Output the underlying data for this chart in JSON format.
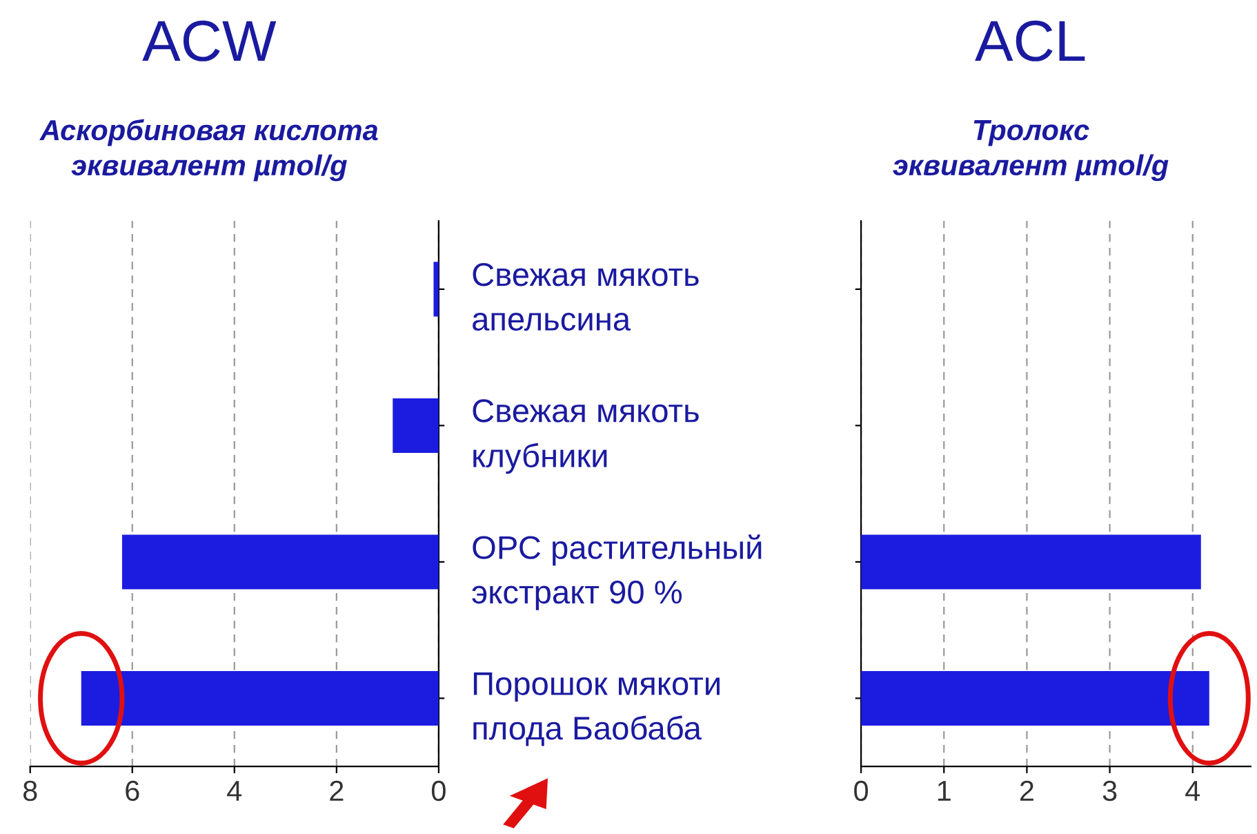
{
  "chart_data": [
    {
      "type": "bar",
      "orientation": "horizontal",
      "title": "ACW",
      "subtitle": "Аскорбиновая кислота\nэквивалент µmol/g",
      "categories": [
        "Свежая мякоть\nапельсина",
        "Свежая мякоть\nклубники",
        "ОРС растительный\nэкстракт 90 %",
        "Порошок мякоти\nплода Баобаба"
      ],
      "values": [
        0.1,
        0.9,
        6.2,
        7.0
      ],
      "color": "#1c1ce0",
      "xlim": [
        8,
        0
      ],
      "xticks": [
        8,
        6,
        4,
        2,
        0
      ],
      "grid": "x"
    },
    {
      "type": "bar",
      "orientation": "horizontal",
      "title": "ACL",
      "subtitle": "Тролокс\nэквивалент µmol/g",
      "categories": [
        null,
        null,
        null,
        null
      ],
      "values": [
        null,
        null,
        4.1,
        4.2
      ],
      "color": "#1c1ce0",
      "xlim": [
        0,
        4.7
      ],
      "xticks": [
        0,
        1,
        2,
        3,
        4
      ],
      "grid": "x",
      "tick_labels": "x"
    }
  ]
}
